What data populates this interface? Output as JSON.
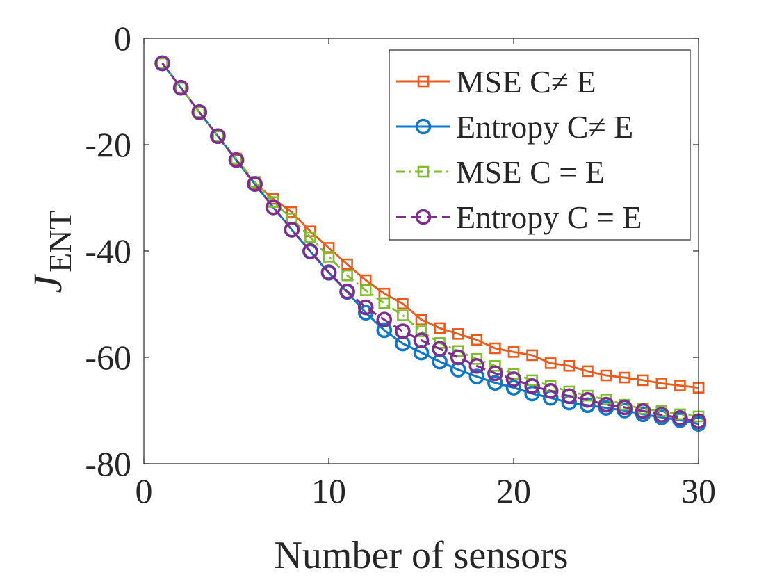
{
  "chart_data": {
    "type": "line",
    "title": "",
    "xlabel": "Number of sensors",
    "ylabel": "J",
    "ylabel_subscript": "ENT",
    "xlim": [
      0,
      30
    ],
    "ylim": [
      -80,
      0
    ],
    "xticks": [
      0,
      10,
      20,
      30
    ],
    "yticks": [
      0,
      -20,
      -40,
      -60,
      -80
    ],
    "xtick_labels": [
      "0",
      "10",
      "20",
      "30"
    ],
    "ytick_labels": [
      "0",
      "-20",
      "-40",
      "-60",
      "-80"
    ],
    "grid": false,
    "legend_position": "top-right",
    "x": [
      1,
      2,
      3,
      4,
      5,
      6,
      7,
      8,
      9,
      10,
      11,
      12,
      13,
      14,
      15,
      16,
      17,
      18,
      19,
      20,
      21,
      22,
      23,
      24,
      25,
      26,
      27,
      28,
      29,
      30
    ],
    "series": [
      {
        "name": "MSE C≠ E",
        "color": "#ED5A1C",
        "line_style": "solid",
        "marker": "square",
        "values": [
          -4.7,
          -9.3,
          -13.9,
          -18.4,
          -22.9,
          -27.3,
          -30.2,
          -32.7,
          -36.3,
          -39.4,
          -42.5,
          -45.5,
          -48.0,
          -49.9,
          -52.9,
          -54.5,
          -55.6,
          -56.7,
          -58.3,
          -59.0,
          -59.6,
          -61.1,
          -61.6,
          -62.6,
          -63.4,
          -63.8,
          -64.3,
          -64.9,
          -65.3,
          -65.7
        ]
      },
      {
        "name": "Entropy C≠ E",
        "color": "#0D77C8",
        "line_style": "solid",
        "marker": "circle",
        "values": [
          -4.7,
          -9.3,
          -13.9,
          -18.4,
          -22.9,
          -27.4,
          -31.8,
          -36.0,
          -40.1,
          -44.1,
          -47.7,
          -51.6,
          -54.9,
          -57.4,
          -59.1,
          -60.8,
          -62.3,
          -63.6,
          -64.8,
          -65.7,
          -66.8,
          -67.6,
          -68.5,
          -69.0,
          -69.5,
          -70.0,
          -70.7,
          -71.3,
          -71.8,
          -72.5
        ]
      },
      {
        "name": "MSE C = E",
        "color": "#7DBD2E",
        "line_style": "dashdot",
        "marker": "square",
        "values": [
          -4.7,
          -9.3,
          -13.9,
          -18.4,
          -22.6,
          -27.0,
          -30.8,
          -33.9,
          -37.4,
          -41.1,
          -44.6,
          -47.4,
          -49.8,
          -52.1,
          -55.1,
          -57.3,
          -58.8,
          -60.3,
          -61.6,
          -63.1,
          -64.3,
          -65.4,
          -66.4,
          -67.2,
          -67.9,
          -68.9,
          -69.7,
          -70.1,
          -70.7,
          -71.1
        ]
      },
      {
        "name": "Entropy C = E",
        "color": "#7D2E8F",
        "line_style": "dashed",
        "marker": "circle",
        "values": [
          -4.7,
          -9.3,
          -13.9,
          -18.4,
          -22.9,
          -27.4,
          -31.8,
          -36.0,
          -40.0,
          -44.0,
          -47.6,
          -50.6,
          -52.9,
          -55.1,
          -56.8,
          -58.4,
          -60.0,
          -61.6,
          -63.0,
          -64.1,
          -65.4,
          -66.3,
          -67.3,
          -68.0,
          -68.9,
          -69.4,
          -70.1,
          -70.8,
          -71.4,
          -72.0
        ]
      }
    ]
  }
}
